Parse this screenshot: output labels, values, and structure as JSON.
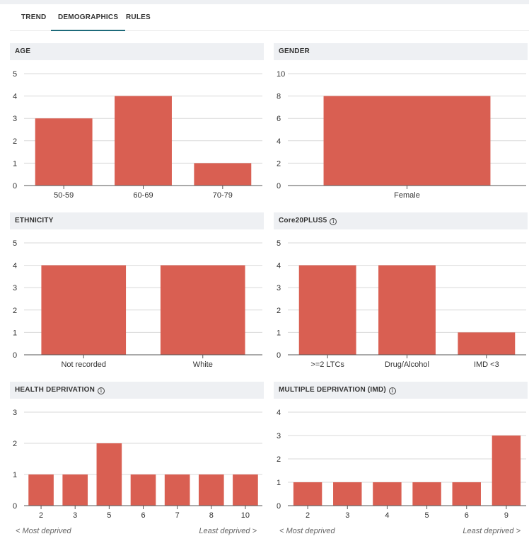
{
  "tabs": [
    {
      "label": "TREND"
    },
    {
      "label": "DEMOGRAPHICS"
    },
    {
      "label": "RULES"
    }
  ],
  "colors": {
    "bar": "#d95f52",
    "grid": "#d9d9d9",
    "axis": "#555555",
    "header_bg": "#eef0f3",
    "active_tab": "#1d6a7a"
  },
  "panels": {
    "age": {
      "title": "AGE"
    },
    "gender": {
      "title": "GENDER"
    },
    "ethnicity": {
      "title": "ETHNICITY"
    },
    "core20": {
      "title": "Core20PLUS5"
    },
    "health": {
      "title": "HEALTH DEPRIVATION",
      "left_note": "< Most deprived",
      "right_note": "Least deprived >"
    },
    "imd": {
      "title": "MULTIPLE DEPRIVATION (IMD)",
      "left_note": "< Most deprived",
      "right_note": "Least deprived >"
    }
  },
  "chart_data": [
    {
      "id": "age",
      "type": "bar",
      "title": "AGE",
      "categories": [
        "50-59",
        "60-69",
        "70-79"
      ],
      "values": [
        3,
        4,
        1
      ],
      "ylim": [
        0,
        5
      ],
      "yticks": [
        0,
        1,
        2,
        3,
        4,
        5
      ]
    },
    {
      "id": "gender",
      "type": "bar",
      "title": "GENDER",
      "categories": [
        "Female"
      ],
      "values": [
        8
      ],
      "ylim": [
        0,
        10
      ],
      "yticks": [
        0,
        2,
        4,
        6,
        8,
        10
      ]
    },
    {
      "id": "ethnicity",
      "type": "bar",
      "title": "ETHNICITY",
      "categories": [
        "Not recorded",
        "White"
      ],
      "values": [
        4,
        4
      ],
      "ylim": [
        0,
        5
      ],
      "yticks": [
        0,
        1,
        2,
        3,
        4,
        5
      ]
    },
    {
      "id": "core20",
      "type": "bar",
      "title": "Core20PLUS5",
      "categories": [
        ">=2 LTCs",
        "Drug/Alcohol",
        "IMD <3"
      ],
      "values": [
        4,
        4,
        1
      ],
      "ylim": [
        0,
        5
      ],
      "yticks": [
        0,
        1,
        2,
        3,
        4,
        5
      ]
    },
    {
      "id": "health",
      "type": "bar",
      "title": "HEALTH DEPRIVATION",
      "categories": [
        "2",
        "3",
        "5",
        "6",
        "7",
        "8",
        "10"
      ],
      "values": [
        1,
        1,
        2,
        1,
        1,
        1,
        1
      ],
      "ylim": [
        0,
        3
      ],
      "yticks": [
        0,
        1,
        2,
        3
      ]
    },
    {
      "id": "imd",
      "type": "bar",
      "title": "MULTIPLE DEPRIVATION (IMD)",
      "categories": [
        "2",
        "3",
        "4",
        "5",
        "6",
        "9"
      ],
      "values": [
        1,
        1,
        1,
        1,
        1,
        3
      ],
      "ylim": [
        0,
        4
      ],
      "yticks": [
        0,
        1,
        2,
        3,
        4
      ]
    }
  ]
}
